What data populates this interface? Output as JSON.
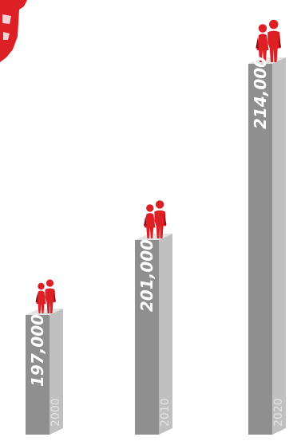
{
  "chart_data": {
    "type": "bar",
    "categories": [
      "2000",
      "2010",
      "2020"
    ],
    "values": [
      197000,
      201000,
      214000
    ],
    "value_labels": [
      "197,000",
      "201,000",
      "214,000"
    ],
    "title": "",
    "xlabel": "",
    "ylabel": "",
    "colors": {
      "pillar_face": "#8f8f8f",
      "pillar_side": "#c0c0c0",
      "pillar_top": "#e3e3e3",
      "figure": "#dd1f26",
      "figure_dark": "#8f1115",
      "emblem": "#dd1f26"
    }
  },
  "marks": {
    "pictogram_icon": "couple-icon",
    "emblem_icon": "red-emblem-fragment"
  }
}
